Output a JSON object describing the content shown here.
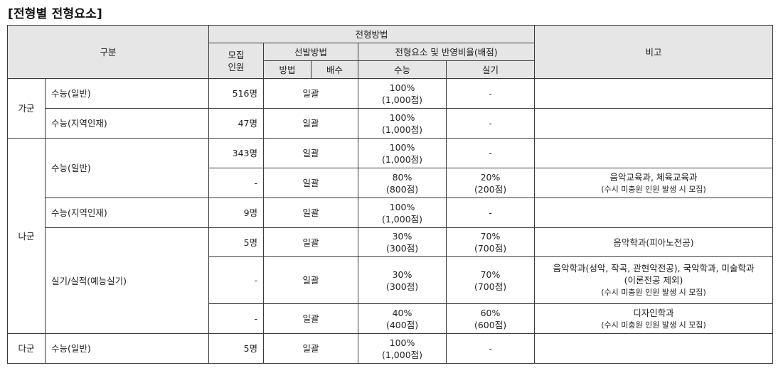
{
  "title": "[전형별 전형요소]",
  "header": {
    "category": "구분",
    "method_group": "전형방법",
    "recruit_line1": "모집",
    "recruit_line2": "인원",
    "selection": "선발방법",
    "elements": "전형요소 및 반영비율(배점)",
    "method": "방법",
    "multiple": "배수",
    "suneung": "수능",
    "practical": "실기",
    "remarks": "비고"
  },
  "groups": {
    "ga": "가군",
    "na": "나군",
    "da": "다군"
  },
  "rows": [
    {
      "type": "수능(일반)",
      "count": "516명",
      "method": "일괄",
      "suneung_pct": "100%",
      "suneung_pts": "(1,000점)",
      "practical": "-"
    },
    {
      "type": "수능(지역인재)",
      "count": "47명",
      "method": "일괄",
      "suneung_pct": "100%",
      "suneung_pts": "(1,000점)",
      "practical": "-"
    },
    {
      "type": "수능(일반)",
      "count": "343명",
      "method": "일괄",
      "suneung_pct": "100%",
      "suneung_pts": "(1,000점)",
      "practical": "-"
    },
    {
      "count": "-",
      "method": "일괄",
      "suneung_pct": "80%",
      "suneung_pts": "(800점)",
      "practical_pct": "20%",
      "practical_pts": "(200점)",
      "note_main": "음악교육과, 체육교육과",
      "note_sub": "(수시 미충원 인원 발생 시 모집)"
    },
    {
      "type": "수능(지역인재)",
      "count": "9명",
      "method": "일괄",
      "suneung_pct": "100%",
      "suneung_pts": "(1,000점)",
      "practical": "-"
    },
    {
      "type": "실기/실적(예능실기)",
      "count": "5명",
      "method": "일괄",
      "suneung_pct": "30%",
      "suneung_pts": "(300점)",
      "practical_pct": "70%",
      "practical_pts": "(700점)",
      "note_main": "음악학과(피아노전공)"
    },
    {
      "count": "-",
      "method": "일괄",
      "suneung_pct": "30%",
      "suneung_pts": "(300점)",
      "practical_pct": "70%",
      "practical_pts": "(700점)",
      "note_line1": "음악학과(성악, 작곡, 관현악전공), 국악학과, 미술학과",
      "note_line2": "(이론전공 제외)",
      "note_sub": "(수시 미충원 인원 발생 시 모집)"
    },
    {
      "count": "-",
      "method": "일괄",
      "suneung_pct": "40%",
      "suneung_pts": "(400점)",
      "practical_pct": "60%",
      "practical_pts": "(600점)",
      "note_main": "디자인학과",
      "note_sub": "(수시 미충원 인원 발생 시 모집)"
    },
    {
      "type": "수능(일반)",
      "count": "5명",
      "method": "일괄",
      "suneung_pct": "100%",
      "suneung_pts": "(1,000점)",
      "practical": "-"
    }
  ]
}
